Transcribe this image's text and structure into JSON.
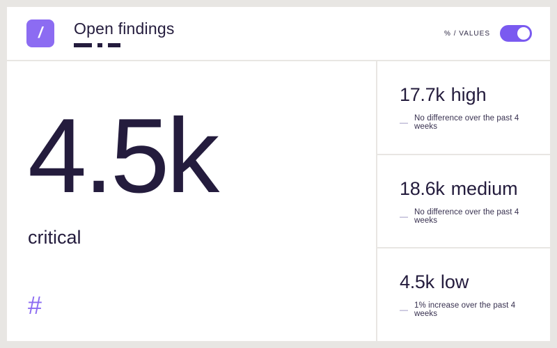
{
  "colors": {
    "background": "#e8e6e3",
    "card": "#ffffff",
    "ink": "#241c3d",
    "accent": "#8c6cf2",
    "toggle": "#7a5af0"
  },
  "header": {
    "logo_icon": "slash-icon",
    "logo_glyph": "/",
    "title": "Open findings",
    "mode_label": "% / VALUES",
    "toggle_state": "values"
  },
  "main_stat": {
    "value": "4.5k",
    "label": "critical",
    "mode_symbol": "#"
  },
  "severity_list": {
    "note_dash": "—",
    "items": [
      {
        "value": "17.7k",
        "severity": "high",
        "note": "No difference over the past 4 weeks"
      },
      {
        "value": "18.6k",
        "severity": "medium",
        "note": "No difference over the past 4 weeks"
      },
      {
        "value": "4.5k",
        "severity": "low",
        "note": "1% increase over the past 4 weeks"
      }
    ]
  }
}
